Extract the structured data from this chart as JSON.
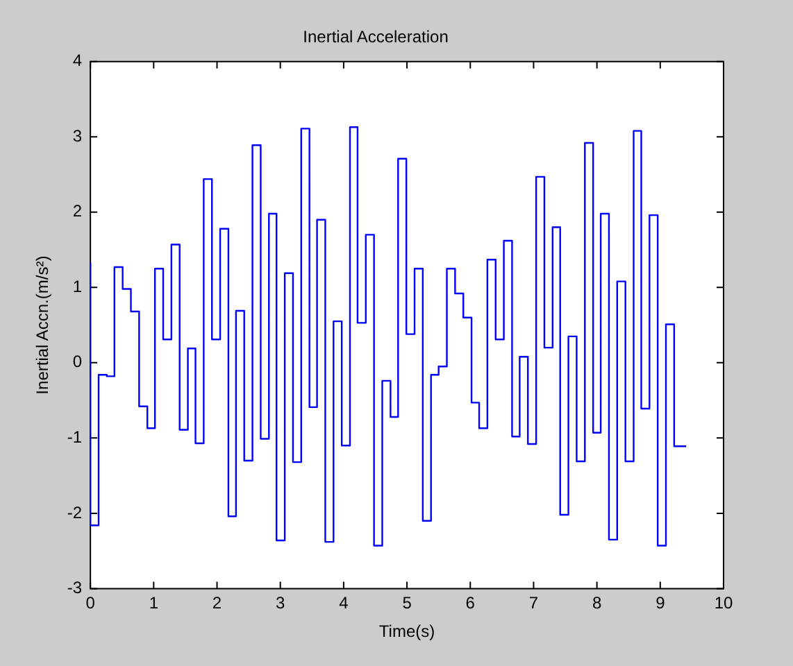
{
  "chart_data": {
    "type": "step",
    "title": "Inertial Acceleration",
    "xlabel": "Time(s)",
    "ylabel": "Inertial Accn.(m/s²)",
    "x": [
      0,
      0.13,
      0.26,
      0.38,
      0.51,
      0.64,
      0.77,
      0.9,
      1.02,
      1.15,
      1.28,
      1.41,
      1.54,
      1.66,
      1.79,
      1.92,
      2.05,
      2.18,
      2.3,
      2.43,
      2.56,
      2.69,
      2.82,
      2.94,
      3.07,
      3.2,
      3.33,
      3.46,
      3.58,
      3.71,
      3.84,
      3.97,
      4.1,
      4.22,
      4.35,
      4.48,
      4.61,
      4.74,
      4.86,
      4.99,
      5.12,
      5.25,
      5.38,
      5.5,
      5.63,
      5.76,
      5.89,
      6.02,
      6.14,
      6.27,
      6.4,
      6.53,
      6.66,
      6.78,
      6.91,
      7.04,
      7.17,
      7.3,
      7.42,
      7.55,
      7.68,
      7.81,
      7.94,
      8.06,
      8.19,
      8.32,
      8.45,
      8.58,
      8.7,
      8.83,
      8.96,
      9.09,
      9.22,
      9.34,
      9.41
    ],
    "series": [
      {
        "color": "#0000ff",
        "values": [
          1.33,
          -2.16,
          -0.16,
          -0.18,
          1.27,
          0.98,
          0.68,
          -0.58,
          -0.87,
          1.25,
          0.31,
          1.57,
          -0.89,
          0.19,
          -1.07,
          2.44,
          0.31,
          1.78,
          -2.04,
          0.69,
          -1.3,
          2.89,
          -1.01,
          1.98,
          -2.36,
          1.19,
          -1.32,
          3.11,
          -0.59,
          1.9,
          -2.38,
          0.55,
          -1.1,
          3.13,
          0.53,
          1.7,
          -2.43,
          -0.24,
          -0.72,
          2.71,
          0.38,
          1.25,
          -2.1,
          -0.16,
          -0.05,
          1.25,
          0.92,
          0.6,
          -0.53,
          -0.87,
          1.37,
          0.31,
          1.62,
          -0.98,
          0.08,
          -1.08,
          2.47,
          0.2,
          1.8,
          -2.02,
          0.35,
          -1.31,
          2.92,
          -0.93,
          1.98,
          -2.35,
          1.08,
          -1.31,
          3.08,
          -0.61,
          1.96,
          -2.43,
          0.51,
          -1.11,
          -1.11
        ]
      }
    ],
    "xlim": [
      0,
      10
    ],
    "xticks": [
      0,
      1,
      2,
      3,
      4,
      5,
      6,
      7,
      8,
      9,
      10
    ],
    "ylim": [
      -3,
      4
    ],
    "yticks": [
      -3,
      -2,
      -1,
      0,
      1,
      2,
      3,
      4
    ],
    "grid": false,
    "legend": false,
    "marker": "none",
    "line_style": "solid"
  }
}
